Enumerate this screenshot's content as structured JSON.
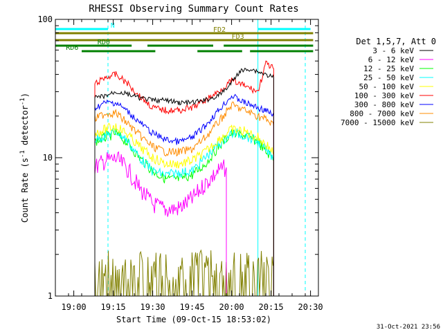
{
  "chart_data": {
    "type": "line",
    "title": "RHESSI Observing Summary Count Rates",
    "xlabel": "Start Time (09-Oct-15 18:53:02)",
    "ylabel_main": "Count Rate (s",
    "ylabel_exp1": "-1",
    "ylabel_mid": " detector",
    "ylabel_exp2": "-1",
    "ylabel_end": ")",
    "yscale": "log",
    "ylim": [
      1,
      100
    ],
    "xlim": [
      "18:53",
      "20:33"
    ],
    "x_ticks": [
      "19:00",
      "19:15",
      "19:30",
      "19:45",
      "20:00",
      "20:15",
      "20:30"
    ],
    "y_ticks": [
      "1",
      "10",
      "100"
    ],
    "legend_header": "Det 1,5,7, Att 0",
    "legend_position": "right",
    "timestamp": "31-Oct-2021 23:56",
    "series": [
      {
        "name": "3 - 6 keV",
        "color": "#000000",
        "x": [
          "19:08",
          "19:12",
          "19:16",
          "19:20",
          "19:25",
          "19:30",
          "19:35",
          "19:40",
          "19:45",
          "19:50",
          "19:55",
          "19:59",
          "20:03",
          "20:07",
          "20:10",
          "20:13",
          "20:16"
        ],
        "y": [
          27,
          28,
          30,
          29,
          27,
          26,
          26,
          25,
          25,
          26,
          28,
          33,
          42,
          44,
          42,
          40,
          38
        ]
      },
      {
        "name": "6 - 12 keV",
        "color": "#ff00ff",
        "x": [
          "19:08",
          "19:12",
          "19:16",
          "19:20",
          "19:25",
          "19:30",
          "19:35",
          "19:40",
          "19:45",
          "19:50",
          "19:55",
          "19:58"
        ],
        "y": [
          8.5,
          9.5,
          9.8,
          8.5,
          6.0,
          4.6,
          4.2,
          4.3,
          5.0,
          6.5,
          8.0,
          8.5
        ]
      },
      {
        "name": "12 - 25 keV",
        "color": "#00ff00",
        "x": [
          "19:08",
          "19:12",
          "19:16",
          "19:20",
          "19:25",
          "19:30",
          "19:35",
          "19:40",
          "19:45",
          "19:50",
          "19:55",
          "20:00",
          "20:05",
          "20:10",
          "20:13",
          "20:16"
        ],
        "y": [
          13,
          14,
          15,
          13,
          10,
          8,
          7,
          7,
          7.5,
          9,
          12,
          15,
          14.5,
          13,
          11,
          10
        ]
      },
      {
        "name": "25 - 50 keV",
        "color": "#00ffff",
        "x": [
          "19:08",
          "19:12",
          "19:16",
          "19:20",
          "19:25",
          "19:30",
          "19:35",
          "19:40",
          "19:45",
          "19:50",
          "19:55",
          "20:00",
          "20:05",
          "20:10",
          "20:13",
          "20:16"
        ],
        "y": [
          13.5,
          14.5,
          15.5,
          13.5,
          10,
          8,
          7.5,
          7.8,
          8,
          10,
          12.5,
          15,
          14.5,
          13,
          11.5,
          10
        ]
      },
      {
        "name": "50 - 100 keV",
        "color": "#ffff00",
        "x": [
          "19:08",
          "19:12",
          "19:16",
          "19:20",
          "19:25",
          "19:30",
          "19:35",
          "19:40",
          "19:45",
          "19:50",
          "19:55",
          "20:00",
          "20:05",
          "20:10",
          "20:13",
          "20:16"
        ],
        "y": [
          15,
          16,
          17,
          15,
          12,
          10,
          9,
          9,
          9.5,
          11,
          13.5,
          16,
          15.5,
          14,
          12.5,
          11
        ]
      },
      {
        "name": "100 - 300 keV",
        "color": "#ff0000",
        "x": [
          "19:08",
          "19:12",
          "19:16",
          "19:20",
          "19:25",
          "19:30",
          "19:35",
          "19:40",
          "19:45",
          "19:50",
          "19:55",
          "20:00",
          "20:05",
          "20:10",
          "20:13",
          "20:16"
        ],
        "y": [
          34,
          38,
          40,
          35,
          28,
          23,
          22,
          22,
          23,
          26,
          30,
          36,
          33,
          30,
          48,
          44
        ]
      },
      {
        "name": "300 - 800 keV",
        "color": "#0000ff",
        "x": [
          "19:08",
          "19:12",
          "19:16",
          "19:20",
          "19:25",
          "19:30",
          "19:35",
          "19:40",
          "19:45",
          "19:50",
          "19:55",
          "20:00",
          "20:05",
          "20:10",
          "20:13",
          "20:16"
        ],
        "y": [
          23,
          25,
          25,
          22,
          18,
          15,
          13.5,
          13,
          14,
          17,
          22,
          28,
          25,
          23,
          22,
          20
        ]
      },
      {
        "name": "800 - 7000 keV",
        "color": "#ff8c00",
        "x": [
          "19:08",
          "19:12",
          "19:16",
          "19:20",
          "19:25",
          "19:30",
          "19:35",
          "19:40",
          "19:45",
          "19:50",
          "19:55",
          "20:00",
          "20:05",
          "20:10",
          "20:13",
          "20:16"
        ],
        "y": [
          19,
          21,
          21,
          18,
          14.5,
          12,
          11,
          11,
          11.5,
          14,
          18,
          24,
          22,
          20,
          19,
          17
        ]
      },
      {
        "name": "7000 - 15000 keV",
        "color": "#808000",
        "x": [
          "19:08",
          "19:12",
          "19:16",
          "19:20",
          "19:25",
          "19:30",
          "19:35",
          "19:40",
          "19:45",
          "19:50",
          "19:55",
          "20:00",
          "20:05",
          "20:10",
          "20:13",
          "20:16"
        ],
        "y": [
          1.5,
          1.5,
          1.5,
          1.4,
          1.5,
          1.4,
          1.5,
          1.4,
          1.5,
          1.4,
          1.5,
          1.5,
          1.5,
          1.5,
          1.4,
          1.5
        ]
      }
    ],
    "flag_bars": [
      {
        "name": "N",
        "color": "#00ffff",
        "segments": [
          [
            "18:53",
            "19:13"
          ],
          [
            "20:10",
            "20:30"
          ]
        ],
        "label_at": "19:14"
      },
      {
        "name": "FD2",
        "color": "#808000",
        "segments": [
          [
            "18:53",
            "20:31"
          ]
        ],
        "label_at": "19:53"
      },
      {
        "name": "FD3",
        "color": "#808000",
        "segments": [
          [
            "18:53",
            "20:31"
          ]
        ],
        "label_at": "20:00"
      },
      {
        "name": "RD0",
        "color": "#008000",
        "segments": [
          [
            "18:53",
            "19:22"
          ],
          [
            "19:28",
            "19:53"
          ],
          [
            "19:57",
            "20:31"
          ]
        ],
        "label_at": "19:09"
      },
      {
        "name": "RD6",
        "color": "#008000",
        "segments": [
          [
            "19:03",
            "19:31"
          ],
          [
            "19:47",
            "20:04"
          ],
          [
            "20:07",
            "20:31"
          ]
        ],
        "label_at": "18:57"
      }
    ],
    "vlines": [
      {
        "color": "#00ffff",
        "style": "solid",
        "x": [
          "18:53",
          "20:10"
        ]
      },
      {
        "color": "#00ffff",
        "style": "dashed",
        "x": [
          "19:13",
          "20:28"
        ]
      }
    ]
  }
}
